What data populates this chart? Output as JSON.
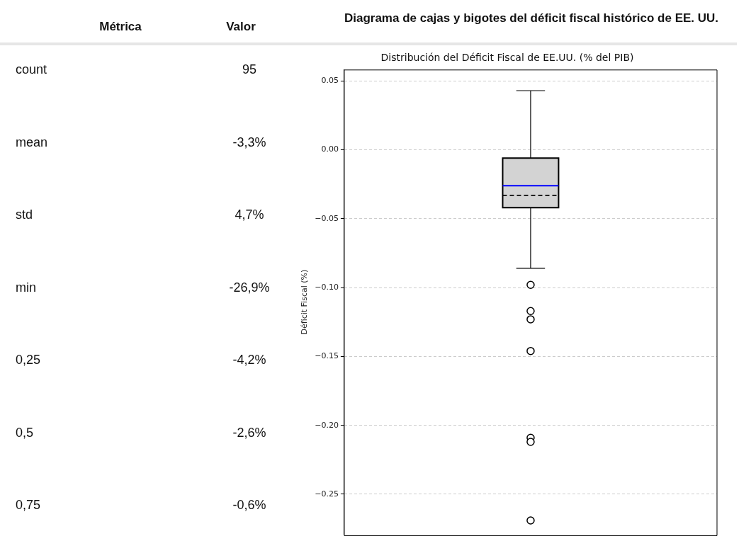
{
  "chart_data": [
    {
      "type": "other",
      "annotations": [
        "Métrica",
        "Valor",
        "count",
        "95",
        "mean",
        "-3,3%",
        "std",
        "4,7%",
        "min",
        "-26,9%",
        "0,25",
        "-4,2%",
        "0,5",
        "-2,6%",
        "0,75",
        "-0,6%"
      ]
    },
    {
      "type": "box",
      "title": "Diagrama de cajas y bigotes del déficit fiscal histórico de EE. UU.",
      "subtitle": "Distribución del Déficit Fiscal de EE.UU. (% del PIB)",
      "ylabel": "Déficit Fiscal (%)",
      "categories": [
        null
      ],
      "color": "#d3d3d3",
      "boxes": [
        {
          "low": -0.086,
          "q1": -0.042,
          "median": -0.026,
          "q3": -0.006,
          "high": 0.043,
          "mean": -0.033,
          "outliers": [
            -0.098,
            -0.117,
            -0.123,
            -0.146,
            -0.209,
            -0.212,
            -0.269
          ]
        }
      ],
      "ylim": [
        -0.279,
        0.058
      ],
      "yticks": [
        {
          "value": 0.05,
          "label": "0.05"
        },
        {
          "value": 0,
          "label": "0.00"
        },
        {
          "value": -0.05,
          "label": "−0.05"
        },
        {
          "value": -0.1,
          "label": "−0.10"
        },
        {
          "value": -0.15,
          "label": "−0.15"
        },
        {
          "value": -0.2,
          "label": "−0.20"
        },
        {
          "value": -0.25,
          "label": "−0.25"
        }
      ],
      "grid": "y",
      "tick_labels": "y"
    }
  ]
}
